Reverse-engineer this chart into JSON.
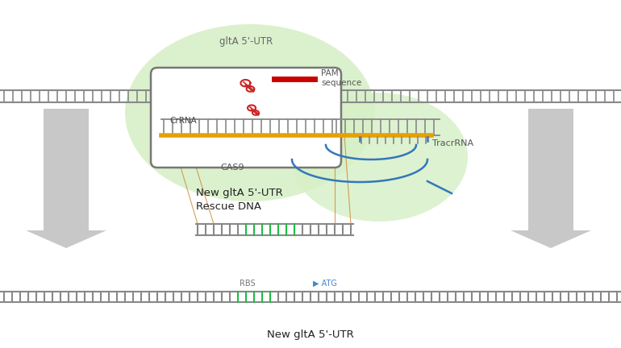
{
  "bg_color": "#ffffff",
  "green_blob_color": "#d8f0c8",
  "dna_color": "#888888",
  "yellow_line_color": "#e8a000",
  "green_bar_color": "#22bb44",
  "red_bar_color": "#cc0000",
  "blue_rna_color": "#3377bb",
  "arrow_color": "#c8c8c8",
  "cas9_box_color": "#777777",
  "title_text": "gltA 5'-UTR",
  "crRNA_label": "CrRNA",
  "cas9_label": "CAS9",
  "pam_label": "PAM\nsequence",
  "tracr_label": "TracrRNA",
  "rescue_label": "New gltA 5'-UTR\nRescue DNA",
  "bottom_label": "New gltA 5'-UTR",
  "rbs_label": "RBS",
  "atg_label": "▶ ATG"
}
